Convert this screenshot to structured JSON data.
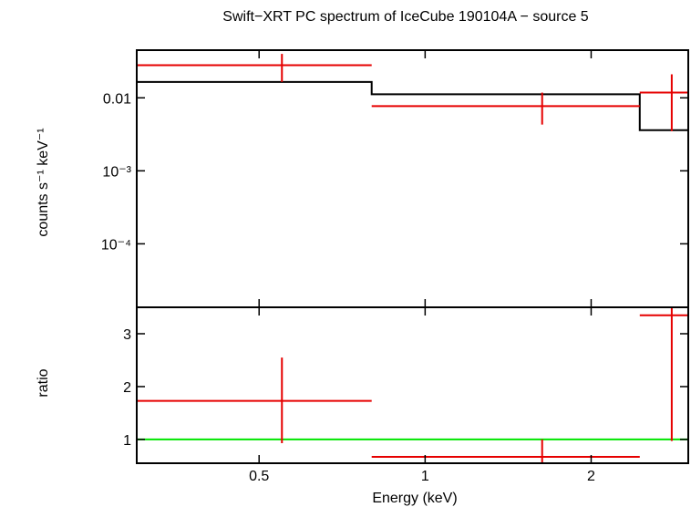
{
  "chart_data": {
    "type": "scatter",
    "title": "Swift−XRT PC spectrum of IceCube 190104A − source 5",
    "xlabel": "Energy (keV)",
    "xscale": "log",
    "xlim": [
      0.3,
      3.0
    ],
    "x_ticks": [
      {
        "value": 0.5,
        "label": "0.5"
      },
      {
        "value": 1,
        "label": "1"
      },
      {
        "value": 2,
        "label": "2"
      }
    ],
    "panels": [
      {
        "id": "spectrum",
        "ylabel": "counts s⁻¹ keV⁻¹",
        "yscale": "log",
        "ylim": [
          1.35e-05,
          0.045
        ],
        "y_ticks": [
          {
            "value": 0.01,
            "label": "0.01"
          },
          {
            "value": 0.001,
            "label": "10⁻³"
          },
          {
            "value": 0.0001,
            "label": "10⁻⁴"
          }
        ],
        "data_points": [
          {
            "x": 0.55,
            "xlo": 0.3,
            "xhi": 0.8,
            "y": 0.028,
            "ylo": 0.0165,
            "yhi": 0.04
          },
          {
            "x": 1.63,
            "xlo": 0.8,
            "xhi": 2.45,
            "y": 0.0077,
            "ylo": 0.0043,
            "yhi": 0.0118
          },
          {
            "x": 2.8,
            "xlo": 2.45,
            "xhi": 3.0,
            "y": 0.0118,
            "ylo": 0.0035,
            "yhi": 0.021
          }
        ],
        "model_steps": [
          {
            "xlo": 0.3,
            "xhi": 0.8,
            "y": 0.0165
          },
          {
            "xlo": 0.8,
            "xhi": 2.45,
            "y": 0.0112
          },
          {
            "xlo": 2.45,
            "xhi": 3.0,
            "y": 0.0036
          }
        ]
      },
      {
        "id": "ratio",
        "ylabel": "ratio",
        "yscale": "linear",
        "ylim": [
          0.55,
          3.5
        ],
        "y_ticks": [
          {
            "value": 1,
            "label": "1"
          },
          {
            "value": 2,
            "label": "2"
          },
          {
            "value": 3,
            "label": "3"
          }
        ],
        "reference_line": 1,
        "data_points": [
          {
            "x": 0.55,
            "xlo": 0.3,
            "xhi": 0.8,
            "y": 1.73,
            "ylo": 0.93,
            "yhi": 2.55
          },
          {
            "x": 1.63,
            "xlo": 0.8,
            "xhi": 2.45,
            "y": 0.67,
            "ylo": 0.55,
            "yhi": 1.0
          },
          {
            "x": 2.8,
            "xlo": 2.45,
            "xhi": 3.0,
            "y": 3.35,
            "ylo": 0.97,
            "yhi": 3.5
          }
        ]
      }
    ],
    "colors": {
      "data": "#e60000",
      "model": "#000000",
      "reference": "#00e600",
      "frame": "#000000"
    }
  }
}
